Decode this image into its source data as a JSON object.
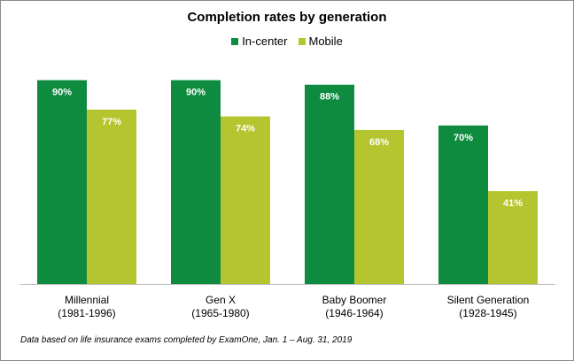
{
  "chart_data": {
    "type": "bar",
    "title": "Completion rates by generation",
    "categories": [
      [
        "Millennial",
        "(1981-1996)"
      ],
      [
        "Gen X",
        "(1965-1980)"
      ],
      [
        "Baby Boomer",
        "(1946-1964)"
      ],
      [
        "Silent Generation",
        "(1928-1945)"
      ]
    ],
    "series": [
      {
        "name": "In-center",
        "color": "#0e8b3f",
        "values": [
          90,
          90,
          88,
          70
        ],
        "labels": [
          "90%",
          "90%",
          "88%",
          "70%"
        ]
      },
      {
        "name": "Mobile",
        "color": "#b5c530",
        "values": [
          77,
          74,
          68,
          41
        ],
        "labels": [
          "77%",
          "74%",
          "68%",
          "41%"
        ]
      }
    ],
    "ylim": [
      0,
      100
    ],
    "legend": "top-center",
    "grid": false,
    "footnote": "Data based on life insurance exams completed by ExamOne, Jan. 1 – Aug. 31, 2019"
  }
}
